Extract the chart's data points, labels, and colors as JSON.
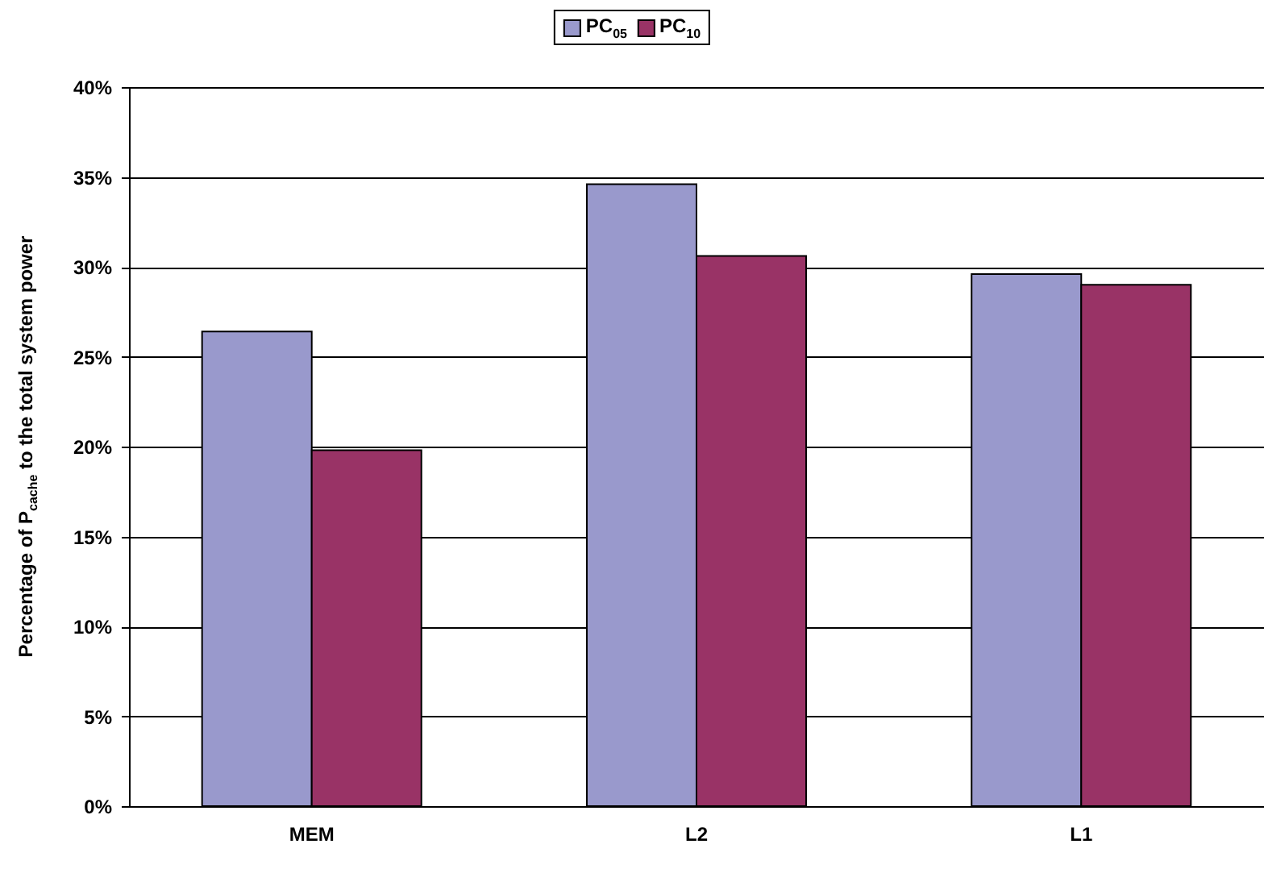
{
  "chart_data": {
    "type": "bar",
    "ylabel": "Percentage of P$_{cache}$ to the total system power",
    "categories": [
      "MEM",
      "L2",
      "L1"
    ],
    "series": [
      {
        "name": "PC$_{05}$",
        "color": "#9999cc",
        "values": [
          26.4,
          34.6,
          29.6
        ]
      },
      {
        "name": "PC$_{10}$",
        "color": "#993366",
        "values": [
          19.8,
          30.6,
          29.0
        ]
      }
    ],
    "ylim": [
      0,
      40
    ],
    "yticks": [
      {
        "value": 0,
        "label": "0%"
      },
      {
        "value": 5,
        "label": "5%"
      },
      {
        "value": 10,
        "label": "10%"
      },
      {
        "value": 15,
        "label": "15%"
      },
      {
        "value": 20,
        "label": "20%"
      },
      {
        "value": 25,
        "label": "25%"
      },
      {
        "value": 30,
        "label": "30%"
      },
      {
        "value": 35,
        "label": "35%"
      },
      {
        "value": 40,
        "label": "40%"
      }
    ],
    "grid": "y",
    "legend": "top"
  }
}
